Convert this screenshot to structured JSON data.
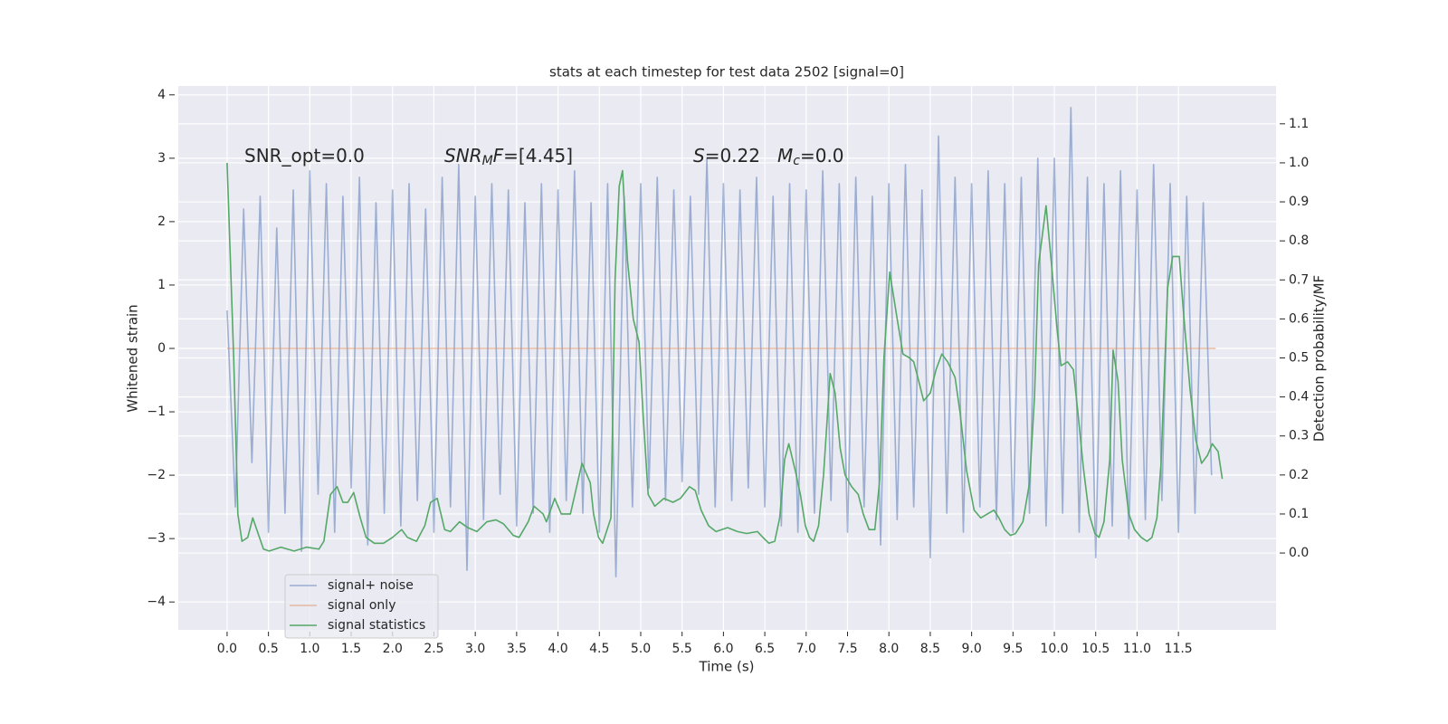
{
  "chart_data": {
    "type": "line",
    "title": "stats at each timestep for test data 2502 [signal=0]",
    "x_label": "Time (s)",
    "y_label": "Whitened strain",
    "y2_label": "Detection probability/MF",
    "annotations": [
      {
        "parts": [
          {
            "text": "SNR_opt=0.0"
          }
        ]
      },
      {
        "parts": [
          {
            "text": "SNR",
            "style": "italic"
          },
          {
            "text": "M",
            "style": "italic-sub"
          },
          {
            "text": "F",
            "style": "italic"
          },
          {
            "text": "=[4.45]"
          }
        ]
      },
      {
        "parts": [
          {
            "text": "S",
            "style": "italic"
          },
          {
            "text": "=0.22"
          }
        ]
      },
      {
        "parts": [
          {
            "text": "M",
            "style": "italic"
          },
          {
            "text": "c",
            "style": "italic-sub"
          },
          {
            "text": "=0.0"
          }
        ]
      }
    ],
    "xlim": [
      -0.59,
      12.68
    ],
    "ylim": [
      -4.44,
      4.14
    ],
    "y2lim": [
      -0.197,
      1.197
    ],
    "xticks": [
      {
        "value": 0,
        "label": "0.0"
      },
      0.5,
      {
        "value": 1,
        "label": "1.0"
      },
      1.5,
      {
        "value": 2,
        "label": "2.0"
      },
      2.5,
      {
        "value": 3,
        "label": "3.0"
      },
      3.5,
      {
        "value": 4,
        "label": "4.0"
      },
      4.5,
      {
        "value": 5,
        "label": "5.0"
      },
      5.5,
      {
        "value": 6,
        "label": "6.0"
      },
      6.5,
      {
        "value": 7,
        "label": "7.0"
      },
      7.5,
      {
        "value": 8,
        "label": "8.0"
      },
      8.5,
      {
        "value": 9,
        "label": "9.0"
      },
      9.5,
      {
        "value": 10,
        "label": "10.0"
      },
      10.5,
      {
        "value": 11,
        "label": "11.0"
      },
      11.5
    ],
    "yticks": [
      {
        "value": -4,
        "label": "−4"
      },
      {
        "value": -3,
        "label": "−3"
      },
      {
        "value": -2,
        "label": "−2"
      },
      {
        "value": -1,
        "label": "−1"
      },
      0,
      1,
      2,
      3,
      4
    ],
    "y2ticks": [
      {
        "value": 0,
        "label": "0.0"
      },
      0.1,
      0.2,
      0.3,
      0.4,
      0.5,
      0.6,
      0.7,
      0.8,
      0.9,
      {
        "value": 1,
        "label": "1.0"
      },
      1.1
    ],
    "grid": true,
    "legend": "lower left",
    "series": [
      {
        "name": "signal+ noise",
        "color": "#4c72b0",
        "opacity": 0.5,
        "x": [
          0,
          0.1,
          0.2,
          0.3,
          0.4,
          0.5,
          0.6,
          0.7,
          0.8,
          0.9,
          1,
          1.1,
          1.2,
          1.3,
          1.4,
          1.5,
          1.6,
          1.7,
          1.8,
          1.9,
          2,
          2.1,
          2.2,
          2.3,
          2.4,
          2.5,
          2.6,
          2.7,
          2.8,
          2.9,
          3,
          3.1,
          3.2,
          3.3,
          3.4,
          3.5,
          3.6,
          3.7,
          3.8,
          3.9,
          4,
          4.1,
          4.2,
          4.3,
          4.4,
          4.5,
          4.6,
          4.7,
          4.8,
          4.9,
          5,
          5.1,
          5.2,
          5.3,
          5.4,
          5.5,
          5.6,
          5.7,
          5.8,
          5.9,
          6,
          6.1,
          6.2,
          6.3,
          6.4,
          6.5,
          6.6,
          6.7,
          6.8,
          6.9,
          7,
          7.1,
          7.2,
          7.3,
          7.4,
          7.5,
          7.6,
          7.7,
          7.8,
          7.9,
          8,
          8.1,
          8.2,
          8.3,
          8.4,
          8.5,
          8.6,
          8.7,
          8.8,
          8.9,
          9,
          9.1,
          9.2,
          9.3,
          9.4,
          9.5,
          9.6,
          9.7,
          9.8,
          9.9,
          10,
          10.1,
          10.2,
          10.3,
          10.4,
          10.5,
          10.6,
          10.7,
          10.8,
          10.9,
          11,
          11.1,
          11.2,
          11.3,
          11.4,
          11.5,
          11.6,
          11.7,
          11.8,
          11.9
        ],
        "values": [
          0.6,
          -2.5,
          2.2,
          -1.8,
          2.4,
          -2.9,
          1.9,
          -2.6,
          2.5,
          -3.2,
          2.8,
          -2.3,
          2.6,
          -2.9,
          2.4,
          -2.2,
          2.7,
          -3.1,
          2.3,
          -2.6,
          2.5,
          -2.8,
          2.6,
          -2.4,
          2.2,
          -2.9,
          2.7,
          -2.5,
          2.9,
          -3.5,
          2.4,
          -2.7,
          2.6,
          -2.3,
          2.5,
          -2.8,
          2.3,
          -2.6,
          2.6,
          -2.9,
          2.5,
          -2.4,
          2.8,
          -2.6,
          2.3,
          -2.9,
          2.6,
          -3.6,
          2.4,
          -2.5,
          2.6,
          -2.2,
          2.7,
          -2.4,
          2.5,
          -2.1,
          2.4,
          -2.3,
          3.0,
          -2.5,
          2.6,
          -2.4,
          2.5,
          -2.2,
          2.7,
          -2.5,
          2.4,
          -2.8,
          2.6,
          -2.9,
          2.5,
          -2.6,
          2.8,
          -2.4,
          2.6,
          -2.9,
          2.7,
          -2.5,
          2.4,
          -3.1,
          2.6,
          -2.7,
          2.9,
          -2.5,
          2.5,
          -3.3,
          3.35,
          -2.6,
          2.7,
          -2.9,
          2.6,
          -2.5,
          2.8,
          -2.7,
          2.6,
          -2.9,
          2.7,
          -2.6,
          3.0,
          -2.8,
          3.0,
          -2.6,
          3.8,
          -2.9,
          2.7,
          -3.3,
          2.6,
          -2.8,
          2.8,
          -3.0,
          2.5,
          -2.7,
          2.9,
          -2.4,
          2.6,
          -2.9,
          2.4,
          -2.6,
          2.3,
          -2.0
        ]
      },
      {
        "name": "signal only",
        "color": "#dd8452",
        "opacity": 0.5,
        "x": [
          0,
          11.95
        ],
        "values": [
          0,
          0
        ]
      },
      {
        "name": "signal statistics",
        "color": "#55a868",
        "axis": "y2",
        "x": [
          0,
          0.08,
          0.13,
          0.18,
          0.25,
          0.31,
          0.44,
          0.51,
          0.65,
          0.81,
          0.96,
          1.11,
          1.17,
          1.25,
          1.33,
          1.4,
          1.46,
          1.53,
          1.61,
          1.68,
          1.78,
          1.89,
          2.0,
          2.11,
          2.18,
          2.29,
          2.39,
          2.46,
          2.54,
          2.63,
          2.7,
          2.81,
          2.91,
          3.02,
          3.14,
          3.25,
          3.34,
          3.46,
          3.53,
          3.64,
          3.71,
          3.82,
          3.86,
          3.96,
          4.04,
          4.15,
          4.29,
          4.39,
          4.43,
          4.49,
          4.54,
          4.64,
          4.69,
          4.74,
          4.78,
          4.84,
          4.91,
          4.98,
          5.03,
          5.09,
          5.17,
          5.28,
          5.39,
          5.48,
          5.59,
          5.66,
          5.73,
          5.82,
          5.91,
          6.05,
          6.17,
          6.28,
          6.41,
          6.5,
          6.55,
          6.62,
          6.68,
          6.74,
          6.79,
          6.87,
          6.93,
          6.99,
          7.04,
          7.09,
          7.15,
          7.21,
          7.29,
          7.35,
          7.41,
          7.47,
          7.55,
          7.63,
          7.69,
          7.76,
          7.83,
          7.89,
          7.94,
          8.01,
          8.1,
          8.17,
          8.25,
          8.3,
          8.35,
          8.42,
          8.5,
          8.57,
          8.64,
          8.71,
          8.8,
          8.86,
          8.94,
          9.03,
          9.11,
          9.19,
          9.27,
          9.33,
          9.4,
          9.47,
          9.53,
          9.62,
          9.7,
          9.76,
          9.81,
          9.9,
          9.97,
          10.03,
          10.08,
          10.16,
          10.23,
          10.28,
          10.35,
          10.42,
          10.49,
          10.54,
          10.6,
          10.67,
          10.71,
          10.77,
          10.82,
          10.9,
          10.97,
          11.05,
          11.12,
          11.18,
          11.24,
          11.29,
          11.37,
          11.43,
          11.51,
          11.56,
          11.64,
          11.71,
          11.78,
          11.85,
          11.91,
          11.98,
          12.03
        ],
        "values": [
          1.0,
          0.5,
          0.1,
          0.03,
          0.04,
          0.09,
          0.01,
          0.005,
          0.015,
          0.005,
          0.015,
          0.01,
          0.03,
          0.15,
          0.17,
          0.13,
          0.13,
          0.155,
          0.09,
          0.04,
          0.025,
          0.025,
          0.04,
          0.06,
          0.04,
          0.03,
          0.07,
          0.13,
          0.14,
          0.06,
          0.055,
          0.08,
          0.065,
          0.055,
          0.08,
          0.085,
          0.075,
          0.045,
          0.04,
          0.08,
          0.12,
          0.1,
          0.08,
          0.14,
          0.1,
          0.1,
          0.23,
          0.18,
          0.1,
          0.04,
          0.025,
          0.09,
          0.7,
          0.94,
          0.98,
          0.75,
          0.6,
          0.54,
          0.35,
          0.15,
          0.12,
          0.14,
          0.13,
          0.14,
          0.17,
          0.16,
          0.11,
          0.07,
          0.055,
          0.065,
          0.055,
          0.05,
          0.055,
          0.035,
          0.025,
          0.03,
          0.09,
          0.24,
          0.28,
          0.21,
          0.15,
          0.07,
          0.04,
          0.03,
          0.07,
          0.2,
          0.46,
          0.41,
          0.27,
          0.2,
          0.17,
          0.15,
          0.1,
          0.06,
          0.06,
          0.19,
          0.5,
          0.72,
          0.6,
          0.51,
          0.5,
          0.49,
          0.45,
          0.39,
          0.41,
          0.47,
          0.51,
          0.49,
          0.45,
          0.36,
          0.21,
          0.11,
          0.09,
          0.1,
          0.11,
          0.09,
          0.06,
          0.045,
          0.05,
          0.08,
          0.18,
          0.4,
          0.74,
          0.89,
          0.73,
          0.58,
          0.48,
          0.49,
          0.47,
          0.37,
          0.22,
          0.1,
          0.05,
          0.04,
          0.08,
          0.24,
          0.52,
          0.44,
          0.24,
          0.1,
          0.06,
          0.04,
          0.03,
          0.04,
          0.09,
          0.23,
          0.68,
          0.76,
          0.76,
          0.62,
          0.42,
          0.29,
          0.23,
          0.25,
          0.28,
          0.26,
          0.19
        ]
      }
    ]
  }
}
